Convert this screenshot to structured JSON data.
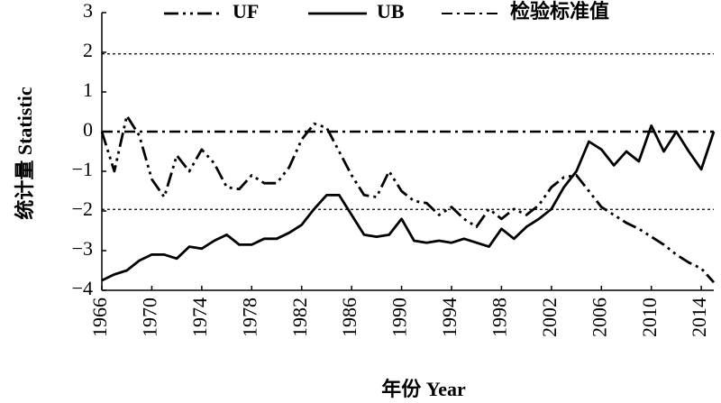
{
  "chart_data": {
    "type": "line",
    "x_label": "年份 Year",
    "y_label": "统计量 Statistic",
    "x": [
      1966,
      1967,
      1968,
      1969,
      1970,
      1971,
      1972,
      1973,
      1974,
      1975,
      1976,
      1977,
      1978,
      1979,
      1980,
      1981,
      1982,
      1983,
      1984,
      1985,
      1986,
      1987,
      1988,
      1989,
      1990,
      1991,
      1992,
      1993,
      1994,
      1995,
      1996,
      1997,
      1998,
      1999,
      2000,
      2001,
      2002,
      2003,
      2004,
      2005,
      2006,
      2007,
      2008,
      2009,
      2010,
      2011,
      2012,
      2013,
      2014,
      2015
    ],
    "series": [
      {
        "name": "UF",
        "color": "#000000",
        "dash": "16 5 3 5 3 5",
        "values": [
          0,
          -1.0,
          0.4,
          -0.1,
          -1.2,
          -1.65,
          -0.6,
          -1.0,
          -0.45,
          -0.8,
          -1.4,
          -1.45,
          -1.1,
          -1.3,
          -1.3,
          -0.9,
          -0.2,
          0.2,
          0.1,
          -0.5,
          -1.1,
          -1.6,
          -1.65,
          -1.0,
          -1.5,
          -1.75,
          -1.8,
          -2.1,
          -1.9,
          -2.2,
          -2.4,
          -1.95,
          -2.2,
          -1.95,
          -2.1,
          -1.85,
          -1.4,
          -1.15,
          -1.1,
          -1.5,
          -1.9,
          -2.1,
          -2.3,
          -2.45,
          -2.65,
          -2.85,
          -3.1,
          -3.3,
          -3.45,
          -3.8
        ]
      },
      {
        "name": "UB",
        "color": "#000000",
        "dash": "none",
        "values": [
          -3.75,
          -3.6,
          -3.5,
          -3.25,
          -3.1,
          -3.1,
          -3.2,
          -2.9,
          -2.95,
          -2.75,
          -2.6,
          -2.85,
          -2.85,
          -2.7,
          -2.7,
          -2.55,
          -2.35,
          -1.95,
          -1.6,
          -1.6,
          -2.1,
          -2.6,
          -2.65,
          -2.6,
          -2.2,
          -2.75,
          -2.8,
          -2.75,
          -2.8,
          -2.7,
          -2.8,
          -2.9,
          -2.45,
          -2.7,
          -2.4,
          -2.2,
          -1.95,
          -1.4,
          -1.0,
          -0.25,
          -0.45,
          -0.85,
          -0.5,
          -0.75,
          0.15,
          -0.5,
          0,
          -0.5,
          -0.95,
          0
        ]
      }
    ],
    "reference_lines": {
      "name": "检验标准值",
      "color": "#000000",
      "values": [
        1.96,
        0,
        -1.96
      ],
      "styles": [
        "dotted",
        "dashdot",
        "dotted"
      ]
    },
    "xlim": [
      1966,
      2015
    ],
    "xticks": [
      1966,
      1970,
      1974,
      1978,
      1982,
      1986,
      1990,
      1994,
      1998,
      2002,
      2006,
      2010,
      2014
    ],
    "ylim": [
      -4,
      3
    ],
    "yticks": [
      3,
      2,
      1,
      0,
      {
        "value": -1,
        "label": "−1"
      },
      {
        "value": -2,
        "label": "−2"
      },
      {
        "value": -3,
        "label": "−3"
      },
      {
        "value": -4,
        "label": "−4"
      }
    ]
  }
}
